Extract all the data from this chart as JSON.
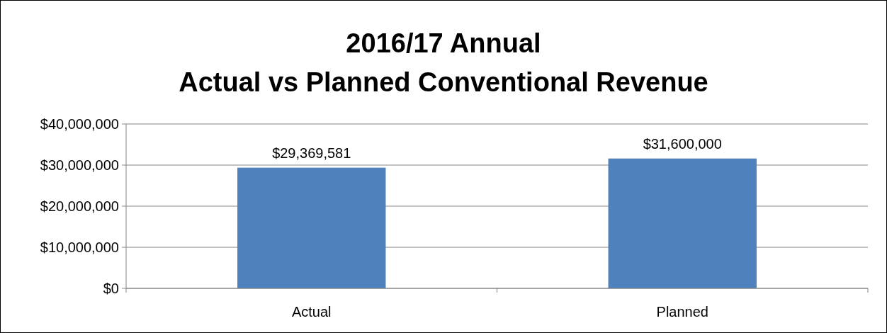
{
  "chart_data": {
    "type": "bar",
    "title": "2016/17 Annual\nActual vs Planned Conventional Revenue",
    "categories": [
      "Actual",
      "Planned"
    ],
    "series": [
      {
        "color": "#4f81bd",
        "values": [
          29369581,
          31600000
        ],
        "value_labels": [
          "$29,369,581",
          "$31,600,000"
        ]
      }
    ],
    "ylim": [
      0,
      40000000
    ],
    "yticks": [
      {
        "value": 0,
        "label": "$0"
      },
      {
        "value": 10000000,
        "label": "$10,000,000"
      },
      {
        "value": 20000000,
        "label": "$20,000,000"
      },
      {
        "value": 30000000,
        "label": "$30,000,000"
      },
      {
        "value": 40000000,
        "label": "$40,000,000"
      }
    ],
    "grid": "y"
  }
}
